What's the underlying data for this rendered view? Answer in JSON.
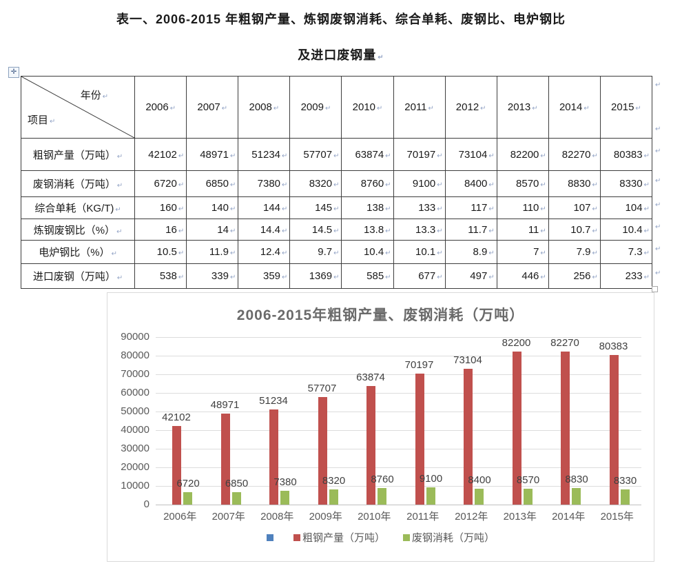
{
  "document": {
    "title_line1": "表一、2006-2015 年粗钢产量、炼钢废钢消耗、综合单耗、废钢比、电炉钢比",
    "title_line2": "及进口废钢量",
    "paragraph_mark": "↵"
  },
  "table": {
    "corner_top_right": "年份",
    "corner_bottom_left": "项目",
    "years": [
      "2006",
      "2007",
      "2008",
      "2009",
      "2010",
      "2011",
      "2012",
      "2013",
      "2014",
      "2015"
    ],
    "rows": [
      {
        "label": "粗钢产量（万吨）",
        "values": [
          "42102",
          "48971",
          "51234",
          "57707",
          "63874",
          "70197",
          "73104",
          "82200",
          "82270",
          "80383"
        ]
      },
      {
        "label": "废钢消耗（万吨）",
        "values": [
          "6720",
          "6850",
          "7380",
          "8320",
          "8760",
          "9100",
          "8400",
          "8570",
          "8830",
          "8330"
        ]
      },
      {
        "label": "综合单耗（KG/T)",
        "values": [
          "160",
          "140",
          "144",
          "145",
          "138",
          "133",
          "117",
          "110",
          "107",
          "104"
        ]
      },
      {
        "label": "炼钢废钢比（%）",
        "values": [
          "16",
          "14",
          "14.4",
          "14.5",
          "13.8",
          "13.3",
          "11.7",
          "11",
          "10.7",
          "10.4"
        ]
      },
      {
        "label": "电炉钢比（%）",
        "values": [
          "10.5",
          "11.9",
          "12.4",
          "9.7",
          "10.4",
          "10.1",
          "8.9",
          "7",
          "7.9",
          "7.3"
        ]
      },
      {
        "label": "进口废钢（万吨）",
        "values": [
          "538",
          "339",
          "359",
          "1369",
          "585",
          "677",
          "497",
          "446",
          "256",
          "233"
        ]
      }
    ]
  },
  "chart_data": {
    "type": "bar",
    "title": "2006-2015年粗钢产量、废钢消耗（万吨）",
    "categories": [
      "2006年",
      "2007年",
      "2008年",
      "2009年",
      "2010年",
      "2011年",
      "2012年",
      "2013年",
      "2014年",
      "2015年"
    ],
    "series": [
      {
        "name": "",
        "color": "#4F81BD",
        "values": []
      },
      {
        "name": "粗钢产量（万吨）",
        "color": "#C0504D",
        "values": [
          42102,
          48971,
          51234,
          57707,
          63874,
          70197,
          73104,
          82200,
          82270,
          80383
        ]
      },
      {
        "name": "废钢消耗（万吨）",
        "color": "#9BBB59",
        "values": [
          6720,
          6850,
          7380,
          8320,
          8760,
          9100,
          8400,
          8570,
          8830,
          8330
        ]
      }
    ],
    "xlabel": "",
    "ylabel": "",
    "ylim": [
      0,
      90000
    ],
    "ytick_step": 10000,
    "grid": true,
    "legend_position": "bottom",
    "data_labels": true
  },
  "colors": {
    "bar_red": "#C0504D",
    "bar_green": "#9BBB59",
    "legend_blue": "#4F81BD",
    "chart_text": "#595959",
    "gridline": "#DCDCDC"
  }
}
